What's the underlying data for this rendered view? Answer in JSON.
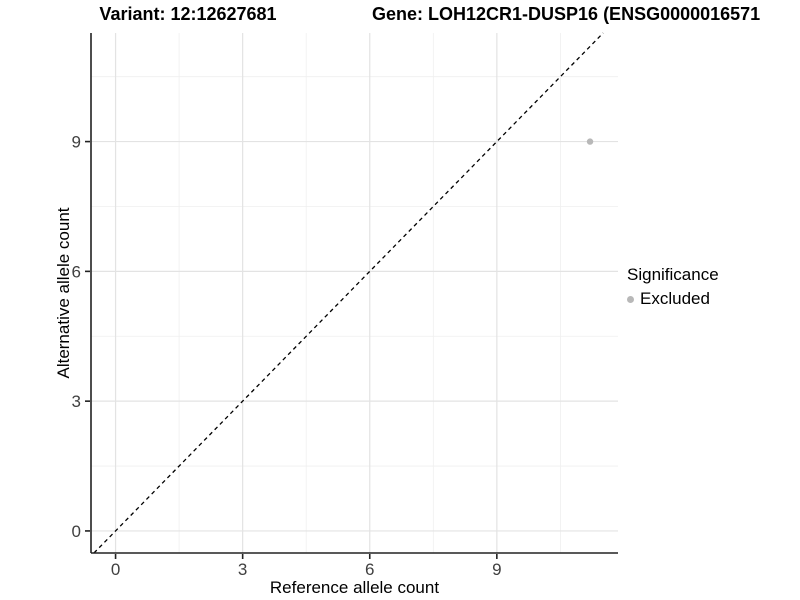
{
  "titles": {
    "variant": "Variant: 12:12627681",
    "gene": "Gene: LOH12CR1-DUSP16 (ENSG0000016571"
  },
  "axes": {
    "x": {
      "label": "Reference allele count"
    },
    "y": {
      "label": "Alternative allele count"
    }
  },
  "legend": {
    "title": "Significance",
    "items": [
      {
        "label": "Excluded",
        "color": "#b8b8b8"
      }
    ]
  },
  "colors": {
    "background": "#ffffff",
    "grid_major": "#e3e3e3",
    "grid_minor": "#efefef",
    "axis_line": "#222222",
    "tick_text": "#404040",
    "point": "#b8b8b8",
    "reference_line": "#000000"
  },
  "chart_data": {
    "type": "scatter",
    "title_left": "Variant: 12:12627681",
    "title_right": "Gene: LOH12CR1-DUSP16 (ENSG0000016571",
    "xlabel": "Reference allele count",
    "ylabel": "Alternative allele count",
    "xlim": [
      -0.58,
      11.86
    ],
    "ylim": [
      -0.51,
      11.51
    ],
    "x_ticks": [
      0,
      3,
      6,
      9
    ],
    "y_ticks": [
      0,
      3,
      6,
      9
    ],
    "x_minor": [
      1.5,
      4.5,
      7.5,
      10.5
    ],
    "y_minor": [
      1.5,
      4.5,
      7.5,
      10.5
    ],
    "grid": "major and minor gridlines, light gray on white panel",
    "legend_position": "right",
    "legend_title": "Significance",
    "series": [
      {
        "name": "Excluded",
        "color": "#b8b8b8",
        "points": [
          [
            11.2,
            9
          ]
        ]
      }
    ],
    "reference_line": {
      "kind": "identity",
      "equation": "y = x",
      "style": "dashed",
      "color": "#000000"
    }
  }
}
